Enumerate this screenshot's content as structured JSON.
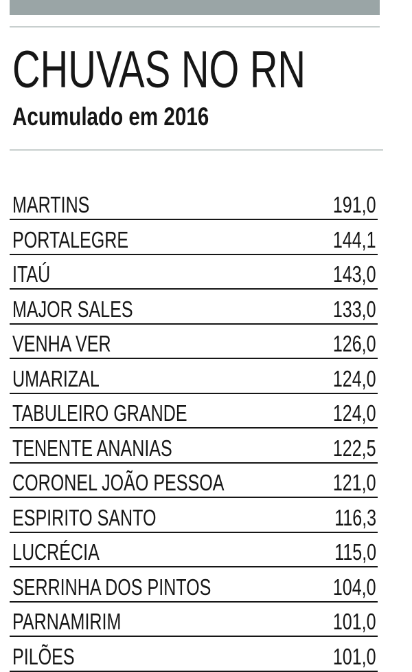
{
  "header": {
    "title": "CHUVAS NO RN",
    "subtitle": "Acumulado em 2016"
  },
  "table": {
    "rows": [
      [
        "MARTINS",
        "191,0"
      ],
      [
        "PORTALEGRE",
        "144,1"
      ],
      [
        "ITAÚ",
        "143,0"
      ],
      [
        "MAJOR SALES",
        "133,0"
      ],
      [
        "VENHA VER",
        "126,0"
      ],
      [
        "UMARIZAL",
        "124,0"
      ],
      [
        "TABULEIRO GRANDE",
        "124,0"
      ],
      [
        "TENENTE ANANIAS",
        "122,5"
      ],
      [
        "CORONEL JOÃO PESSOA",
        "121,0"
      ],
      [
        "ESPIRITO SANTO",
        "116,3"
      ],
      [
        "LUCRÉCIA",
        "115,0"
      ],
      [
        "SERRINHA DOS PINTOS",
        "104,0"
      ],
      [
        "PARNAMIRIM",
        "101,0"
      ],
      [
        "PILÕES",
        "101,0"
      ]
    ]
  }
}
